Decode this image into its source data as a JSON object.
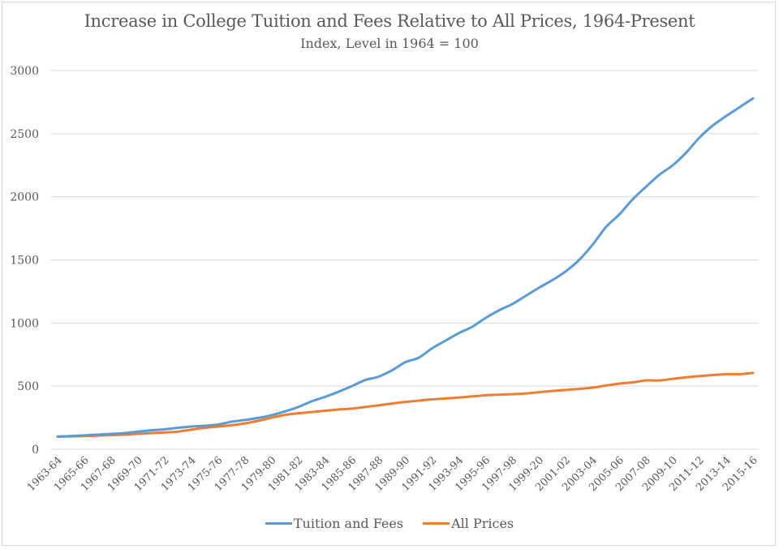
{
  "chart_data": {
    "type": "line",
    "title": "Increase in College Tuition and Fees Relative to All Prices, 1964-Present",
    "subtitle": "Index, Level in 1964 = 100",
    "xlabel": "",
    "ylabel": "",
    "ylim": [
      0,
      3000
    ],
    "yticks": [
      0,
      500,
      1000,
      1500,
      2000,
      2500,
      3000
    ],
    "grid": true,
    "legend_position": "bottom",
    "x": [
      "1963-64",
      "1964-65",
      "1965-66",
      "1966-67",
      "1967-68",
      "1968-69",
      "1969-70",
      "1970-71",
      "1971-72",
      "1972-73",
      "1973-74",
      "1974-75",
      "1975-76",
      "1976-77",
      "1977-78",
      "1978-79",
      "1979-80",
      "1980-81",
      "1981-82",
      "1982-83",
      "1983-84",
      "1984-85",
      "1985-86",
      "1986-87",
      "1987-88",
      "1988-89",
      "1989-90",
      "1990-91",
      "1991-92",
      "1992-93",
      "1993-94",
      "1994-95",
      "1995-96",
      "1996-97",
      "1997-98",
      "1998-99",
      "1999-20",
      "2000-01",
      "2001-02",
      "2002-03",
      "2003-04",
      "2004-05",
      "2005-06",
      "2006-07",
      "2007-08",
      "2008-09",
      "2009-10",
      "2010-11",
      "2011-12",
      "2012-13",
      "2013-14",
      "2014-15",
      "2015-16"
    ],
    "xtick_labels": [
      "1963-64",
      "1965-66",
      "1967-68",
      "1969-70",
      "1971-72",
      "1973-74",
      "1975-76",
      "1977-78",
      "1979-80",
      "1981-82",
      "1983-84",
      "1985-86",
      "1987-88",
      "1989-90",
      "1991-92",
      "1993-94",
      "1995-96",
      "1997-98",
      "1999-20",
      "2001-02",
      "2003-04",
      "2005-06",
      "2007-08",
      "2009-10",
      "2011-12",
      "2013-14",
      "2015-16"
    ],
    "series": [
      {
        "name": "Tuition and Fees",
        "color": "#5b9bd5",
        "values": [
          100,
          105,
          110,
          116,
          122,
          128,
          140,
          150,
          158,
          170,
          180,
          186,
          196,
          218,
          232,
          248,
          270,
          300,
          335,
          380,
          415,
          455,
          500,
          548,
          575,
          625,
          690,
          725,
          800,
          860,
          920,
          970,
          1040,
          1100,
          1150,
          1215,
          1280,
          1340,
          1410,
          1500,
          1620,
          1760,
          1860,
          1980,
          2080,
          2175,
          2250,
          2350,
          2470,
          2565,
          2640,
          2710,
          2780
        ]
      },
      {
        "name": "All Prices",
        "color": "#ed7d31",
        "values": [
          100,
          102,
          105,
          108,
          112,
          116,
          122,
          128,
          133,
          140,
          155,
          170,
          180,
          190,
          205,
          225,
          250,
          272,
          285,
          295,
          305,
          315,
          322,
          335,
          348,
          362,
          375,
          385,
          395,
          402,
          410,
          418,
          428,
          432,
          436,
          442,
          452,
          462,
          470,
          478,
          488,
          505,
          520,
          530,
          545,
          545,
          558,
          570,
          580,
          588,
          595,
          595,
          605
        ]
      }
    ]
  }
}
